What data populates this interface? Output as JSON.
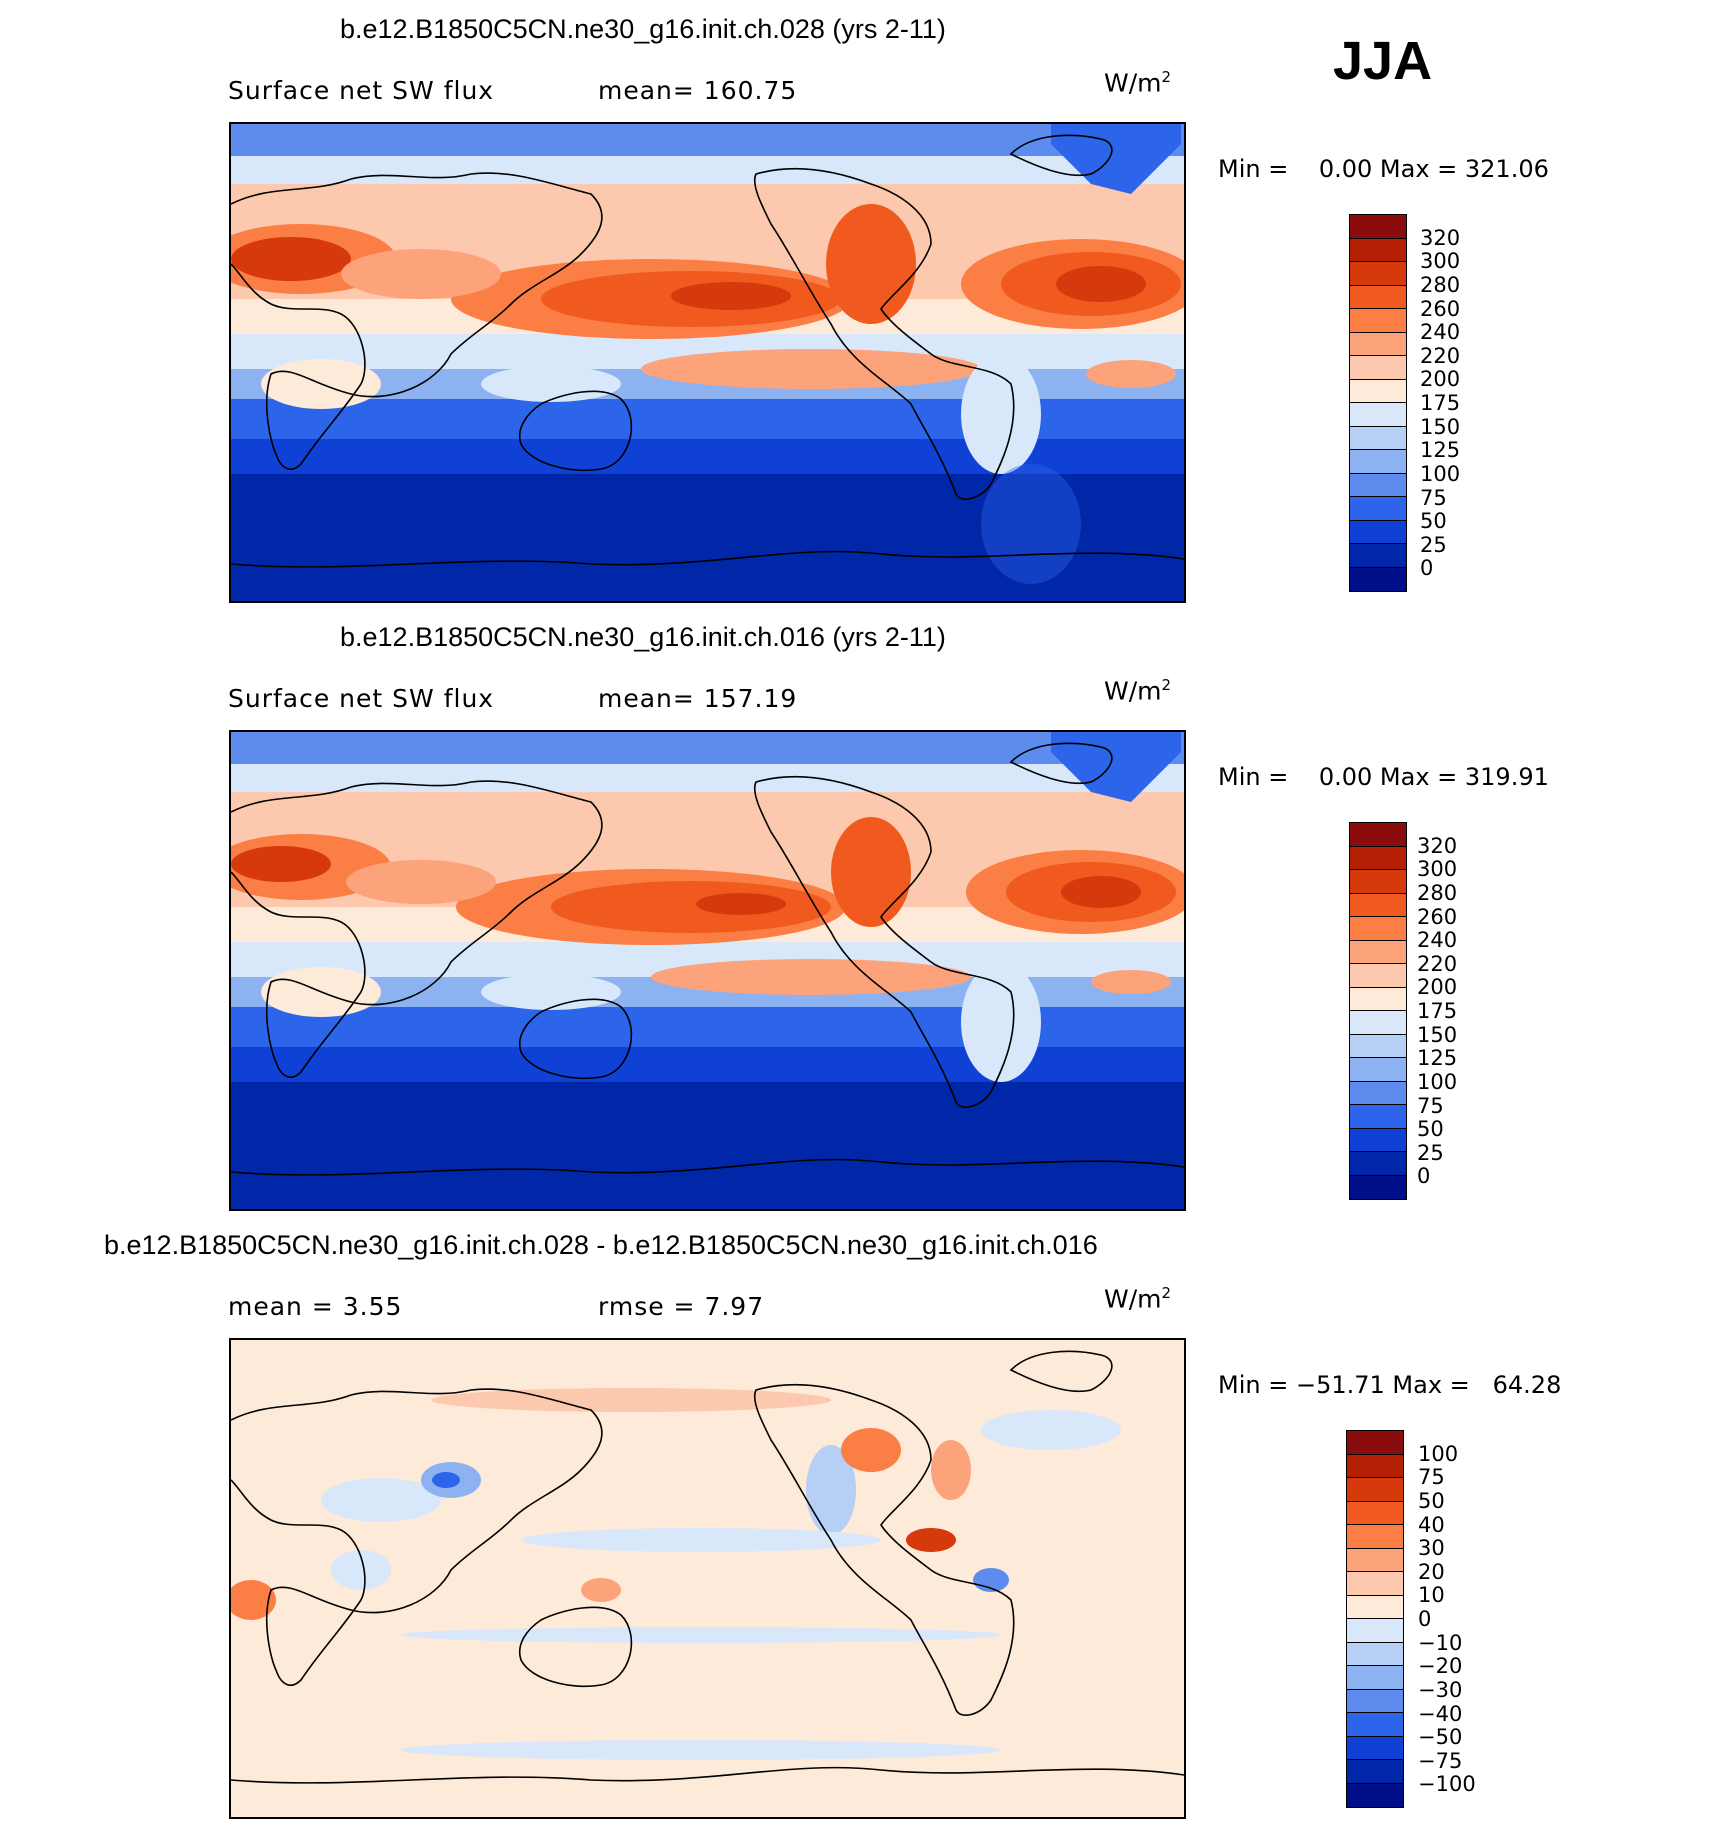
{
  "season": "JJA",
  "panels": [
    {
      "title": "b.e12.B1850C5CN.ne30_g16.init.ch.028 (yrs 2-11)",
      "left_label": "Surface net SW flux",
      "mid_label": "mean=  160.75",
      "units": "W/m",
      "units_sup": "2",
      "minmax": "Min =    0.00 Max = 321.06",
      "colorbar": {
        "levels": [
          "320",
          "300",
          "280",
          "260",
          "240",
          "220",
          "200",
          "175",
          "150",
          "125",
          "100",
          "75",
          "50",
          "25",
          "0"
        ],
        "colors": [
          "#8a0c0c",
          "#b32003",
          "#d63a0c",
          "#f05a1e",
          "#fb7f45",
          "#fca37b",
          "#fdc9ae",
          "#feead9",
          "#d8e7fa",
          "#b6cff5",
          "#8db2f1",
          "#5d8cee",
          "#2c64ea",
          "#0f41d6",
          "#0027a8",
          "#000e87"
        ]
      }
    },
    {
      "title": "b.e12.B1850C5CN.ne30_g16.init.ch.016 (yrs 2-11)",
      "left_label": "Surface net SW flux",
      "mid_label": "mean=  157.19",
      "units": "W/m",
      "units_sup": "2",
      "minmax": "Min =    0.00 Max = 319.91",
      "colorbar": {
        "levels": [
          "320",
          "300",
          "280",
          "260",
          "240",
          "220",
          "200",
          "175",
          "150",
          "125",
          "100",
          "75",
          "50",
          "25",
          "0"
        ],
        "colors": [
          "#8a0c0c",
          "#b32003",
          "#d63a0c",
          "#f05a1e",
          "#fb7f45",
          "#fca37b",
          "#fdc9ae",
          "#feead9",
          "#d8e7fa",
          "#b6cff5",
          "#8db2f1",
          "#5d8cee",
          "#2c64ea",
          "#0f41d6",
          "#0027a8",
          "#000e87"
        ]
      }
    },
    {
      "title": "b.e12.B1850C5CN.ne30_g16.init.ch.028 - b.e12.B1850C5CN.ne30_g16.init.ch.016",
      "left_label": "mean =    3.55",
      "mid_label": "rmse =    7.97",
      "units": "W/m",
      "units_sup": "2",
      "minmax": "Min = −51.71 Max =   64.28",
      "colorbar": {
        "levels": [
          "100",
          "75",
          "50",
          "40",
          "30",
          "20",
          "10",
          "0",
          "−10",
          "−20",
          "−30",
          "−40",
          "−50",
          "−75",
          "−100"
        ],
        "colors": [
          "#8a0c0c",
          "#b32003",
          "#d63a0c",
          "#f05a1e",
          "#fb7f45",
          "#fca37b",
          "#fdc9ae",
          "#feead9",
          "#d8e7fa",
          "#b6cff5",
          "#8db2f1",
          "#5d8cee",
          "#2c64ea",
          "#0f41d6",
          "#0027a8",
          "#000e87"
        ]
      }
    }
  ]
}
